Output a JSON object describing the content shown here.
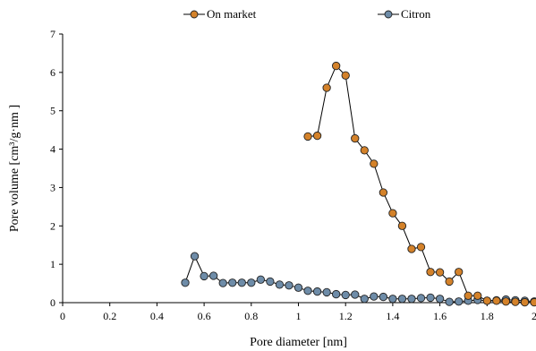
{
  "chart_data": {
    "type": "scatter",
    "xlabel": "Pore diameter [nm]",
    "ylabel": "Pore volume [cm³/g·nm ]",
    "xlim": [
      0,
      2
    ],
    "ylim": [
      0,
      7
    ],
    "x_ticks": [
      0,
      0.2,
      0.4,
      0.6,
      0.8,
      1,
      1.2,
      1.4,
      1.6,
      1.8,
      2
    ],
    "y_ticks": [
      0,
      1,
      2,
      3,
      4,
      5,
      6,
      7
    ],
    "grid": false,
    "legend_position": "top",
    "series": [
      {
        "name": "On market",
        "color": "#d4822a",
        "points": [
          [
            1.04,
            4.33
          ],
          [
            1.08,
            4.35
          ],
          [
            1.12,
            5.6
          ],
          [
            1.16,
            6.17
          ],
          [
            1.2,
            5.92
          ],
          [
            1.24,
            4.28
          ],
          [
            1.28,
            3.97
          ],
          [
            1.32,
            3.62
          ],
          [
            1.36,
            2.87
          ],
          [
            1.4,
            2.33
          ],
          [
            1.44,
            2.0
          ],
          [
            1.48,
            1.4
          ],
          [
            1.52,
            1.45
          ],
          [
            1.56,
            0.8
          ],
          [
            1.6,
            0.79
          ],
          [
            1.64,
            0.55
          ],
          [
            1.68,
            0.8
          ],
          [
            1.72,
            0.18
          ],
          [
            1.76,
            0.18
          ],
          [
            1.8,
            0.05
          ],
          [
            1.84,
            0.05
          ],
          [
            1.88,
            0.03
          ],
          [
            1.92,
            0.02
          ],
          [
            1.96,
            0.01
          ],
          [
            2.0,
            0.01
          ]
        ]
      },
      {
        "name": "Citron",
        "color": "#6e8ca8",
        "points": [
          [
            0.52,
            0.52
          ],
          [
            0.56,
            1.21
          ],
          [
            0.6,
            0.69
          ],
          [
            0.64,
            0.7
          ],
          [
            0.68,
            0.51
          ],
          [
            0.72,
            0.52
          ],
          [
            0.76,
            0.52
          ],
          [
            0.8,
            0.52
          ],
          [
            0.84,
            0.6
          ],
          [
            0.88,
            0.55
          ],
          [
            0.92,
            0.47
          ],
          [
            0.96,
            0.45
          ],
          [
            1.0,
            0.39
          ],
          [
            1.04,
            0.31
          ],
          [
            1.08,
            0.29
          ],
          [
            1.12,
            0.27
          ],
          [
            1.16,
            0.22
          ],
          [
            1.2,
            0.2
          ],
          [
            1.24,
            0.21
          ],
          [
            1.28,
            0.1
          ],
          [
            1.32,
            0.16
          ],
          [
            1.36,
            0.15
          ],
          [
            1.4,
            0.1
          ],
          [
            1.44,
            0.1
          ],
          [
            1.48,
            0.1
          ],
          [
            1.52,
            0.12
          ],
          [
            1.56,
            0.13
          ],
          [
            1.6,
            0.1
          ],
          [
            1.64,
            0.02
          ],
          [
            1.68,
            0.03
          ],
          [
            1.72,
            0.05
          ],
          [
            1.76,
            0.07
          ],
          [
            1.8,
            0.05
          ],
          [
            1.84,
            0.06
          ],
          [
            1.88,
            0.08
          ],
          [
            1.92,
            0.06
          ],
          [
            1.96,
            0.05
          ],
          [
            2.0,
            0.03
          ]
        ]
      }
    ]
  }
}
